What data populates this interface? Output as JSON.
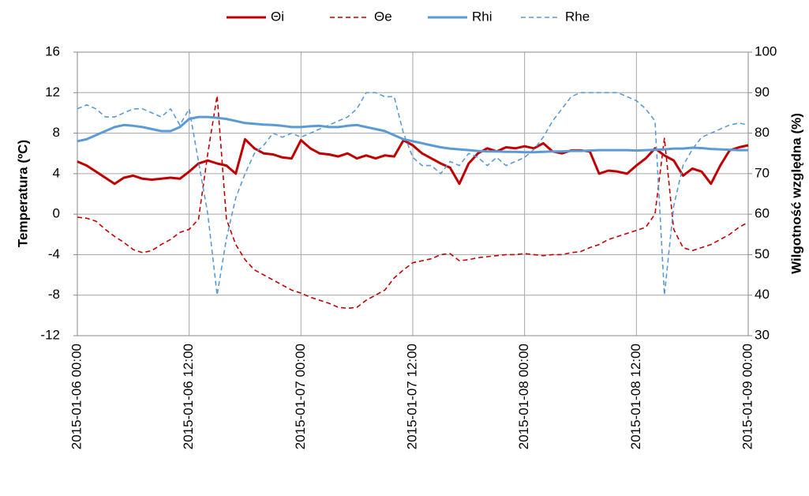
{
  "chart_data": {
    "type": "line",
    "y_label": "Temperatura (ºC)",
    "y2_label": "Wilgotność względna (%)",
    "x": [
      "2015-01-06 00:00",
      "2015-01-06 01:00",
      "2015-01-06 02:00",
      "2015-01-06 03:00",
      "2015-01-06 04:00",
      "2015-01-06 05:00",
      "2015-01-06 06:00",
      "2015-01-06 07:00",
      "2015-01-06 08:00",
      "2015-01-06 09:00",
      "2015-01-06 10:00",
      "2015-01-06 11:00",
      "2015-01-06 12:00",
      "2015-01-06 13:00",
      "2015-01-06 14:00",
      "2015-01-06 15:00",
      "2015-01-06 16:00",
      "2015-01-06 17:00",
      "2015-01-06 18:00",
      "2015-01-06 19:00",
      "2015-01-06 20:00",
      "2015-01-06 21:00",
      "2015-01-06 22:00",
      "2015-01-06 23:00",
      "2015-01-07 00:00",
      "2015-01-07 01:00",
      "2015-01-07 02:00",
      "2015-01-07 03:00",
      "2015-01-07 04:00",
      "2015-01-07 05:00",
      "2015-01-07 06:00",
      "2015-01-07 07:00",
      "2015-01-07 08:00",
      "2015-01-07 09:00",
      "2015-01-07 10:00",
      "2015-01-07 11:00",
      "2015-01-07 12:00",
      "2015-01-07 13:00",
      "2015-01-07 14:00",
      "2015-01-07 15:00",
      "2015-01-07 16:00",
      "2015-01-07 17:00",
      "2015-01-07 18:00",
      "2015-01-07 19:00",
      "2015-01-07 20:00",
      "2015-01-07 21:00",
      "2015-01-07 22:00",
      "2015-01-07 23:00",
      "2015-01-08 00:00",
      "2015-01-08 01:00",
      "2015-01-08 02:00",
      "2015-01-08 03:00",
      "2015-01-08 04:00",
      "2015-01-08 05:00",
      "2015-01-08 06:00",
      "2015-01-08 07:00",
      "2015-01-08 08:00",
      "2015-01-08 09:00",
      "2015-01-08 10:00",
      "2015-01-08 11:00",
      "2015-01-08 12:00",
      "2015-01-08 13:00",
      "2015-01-08 14:00",
      "2015-01-08 15:00",
      "2015-01-08 16:00",
      "2015-01-08 17:00",
      "2015-01-08 18:00",
      "2015-01-08 19:00",
      "2015-01-08 20:00",
      "2015-01-08 21:00",
      "2015-01-08 22:00",
      "2015-01-08 23:00",
      "2015-01-09 00:00"
    ],
    "series": [
      {
        "name": "Θi",
        "color": "#c00000",
        "dash": false,
        "values": [
          5.2,
          4.8,
          4.2,
          3.6,
          3.0,
          3.6,
          3.8,
          3.5,
          3.4,
          3.5,
          3.6,
          3.5,
          4.2,
          5.0,
          5.3,
          5.0,
          4.8,
          4.0,
          7.4,
          6.5,
          6.0,
          5.9,
          5.6,
          5.5,
          7.3,
          6.5,
          6.0,
          5.9,
          5.7,
          6.0,
          5.5,
          5.8,
          5.5,
          5.8,
          5.7,
          7.3,
          6.8,
          6.0,
          5.5,
          5.0,
          4.6,
          3.0,
          5.0,
          6.0,
          6.5,
          6.2,
          6.6,
          6.5,
          6.7,
          6.5,
          7.0,
          6.2,
          6.0,
          6.3,
          6.3,
          6.2,
          4.0,
          4.3,
          4.2,
          4.0,
          4.8,
          5.5,
          6.5,
          5.8,
          5.3,
          3.8,
          4.5,
          4.2,
          3.0,
          4.8,
          6.3,
          6.6,
          6.8
        ]
      },
      {
        "name": "Θe",
        "color": "#c00000",
        "dash": true,
        "values": [
          -0.3,
          -0.4,
          -0.7,
          -1.5,
          -2.2,
          -2.8,
          -3.5,
          -3.8,
          -3.6,
          -3.0,
          -2.5,
          -1.8,
          -1.5,
          -0.5,
          6.0,
          11.7,
          -0.5,
          -3.0,
          -4.5,
          -5.5,
          -6.0,
          -6.5,
          -7.0,
          -7.5,
          -7.8,
          -8.2,
          -8.5,
          -8.8,
          -9.2,
          -9.3,
          -9.2,
          -8.5,
          -8.0,
          -7.5,
          -6.3,
          -5.5,
          -4.8,
          -4.6,
          -4.4,
          -4.0,
          -3.9,
          -4.6,
          -4.5,
          -4.3,
          -4.2,
          -4.1,
          -4.0,
          -4.0,
          -3.9,
          -4.0,
          -4.1,
          -4.0,
          -4.0,
          -3.8,
          -3.7,
          -3.3,
          -3.0,
          -2.5,
          -2.2,
          -1.9,
          -1.6,
          -1.3,
          0.0,
          7.5,
          -1.5,
          -3.3,
          -3.6,
          -3.3,
          -3.0,
          -2.5,
          -2.0,
          -1.3,
          -0.8
        ]
      },
      {
        "name": "Rhi",
        "color": "#5b9bd5",
        "dash": false,
        "axis": "y2",
        "values": [
          78,
          78.5,
          79.5,
          80.5,
          81.5,
          82,
          81.8,
          81.5,
          81,
          80.5,
          80.5,
          81.5,
          83.5,
          84,
          84,
          83.8,
          83.5,
          83,
          82.5,
          82.3,
          82.1,
          82,
          81.8,
          81.5,
          81.5,
          81.7,
          81.8,
          81.5,
          81.5,
          81.8,
          82,
          81.5,
          81,
          80.5,
          79.5,
          78.5,
          78,
          77.5,
          77,
          76.5,
          76.2,
          76,
          75.8,
          75.6,
          75.5,
          75.5,
          75.4,
          75.4,
          75.3,
          75.3,
          75.4,
          75.5,
          75.5,
          75.6,
          75.6,
          75.7,
          75.8,
          75.8,
          75.8,
          75.8,
          75.7,
          75.8,
          75.9,
          76,
          76.2,
          76.2,
          76.4,
          76.3,
          76.1,
          76,
          75.9,
          75.8,
          75.8
        ]
      },
      {
        "name": "Rhe",
        "color": "#5b9bd5",
        "dash": true,
        "axis": "y2",
        "values": [
          86,
          87,
          86,
          84,
          84,
          85,
          86,
          86,
          85,
          84,
          86,
          82,
          86,
          73,
          60,
          40,
          54,
          64,
          70,
          75,
          77,
          80,
          79,
          80,
          79,
          80,
          81,
          82,
          83,
          84,
          86,
          90,
          90,
          89,
          89,
          80,
          74,
          72,
          72,
          70,
          73,
          72,
          75,
          74,
          72,
          74,
          72,
          73,
          74,
          76,
          79,
          83,
          86,
          89,
          90,
          90,
          90,
          90,
          90,
          89,
          88,
          86,
          83,
          40,
          62,
          72,
          76,
          79,
          80,
          81,
          82,
          82.5,
          82
        ]
      }
    ],
    "xlim": [
      "2015-01-06 00:00",
      "2015-01-09 00:00"
    ],
    "xticks": [
      "2015-01-06 00:00",
      "2015-01-06 12:00",
      "2015-01-07 00:00",
      "2015-01-07 12:00",
      "2015-01-08 00:00",
      "2015-01-08 12:00",
      "2015-01-09 00:00"
    ],
    "ylim": [
      -12,
      16
    ],
    "yticks": [
      -12,
      -8,
      -4,
      0,
      4,
      8,
      12,
      16
    ],
    "y2lim": [
      30,
      100
    ],
    "y2ticks": [
      30,
      40,
      50,
      60,
      70,
      80,
      90,
      100
    ],
    "grid": true,
    "legend": "top"
  }
}
